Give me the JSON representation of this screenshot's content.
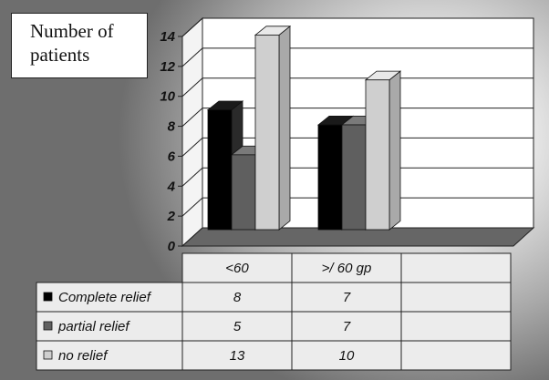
{
  "chart_data": {
    "type": "bar",
    "title": "Number of patients",
    "title_lines": [
      "Number of",
      "patients"
    ],
    "categories": [
      "<60",
      ">/ 60 gp"
    ],
    "series": [
      {
        "name": "Complete relief",
        "values": [
          8,
          7
        ],
        "color": "#000000"
      },
      {
        "name": "partial relief",
        "values": [
          5,
          7
        ],
        "color": "#5f5f5f"
      },
      {
        "name": "no relief",
        "values": [
          13,
          10
        ],
        "color": "#cfcfcf"
      }
    ],
    "ylim": [
      0,
      14
    ],
    "yticks": [
      0,
      2,
      4,
      6,
      8,
      10,
      12,
      14
    ],
    "grid": true,
    "three_d": true,
    "data_table": true,
    "legend": "in data table"
  }
}
